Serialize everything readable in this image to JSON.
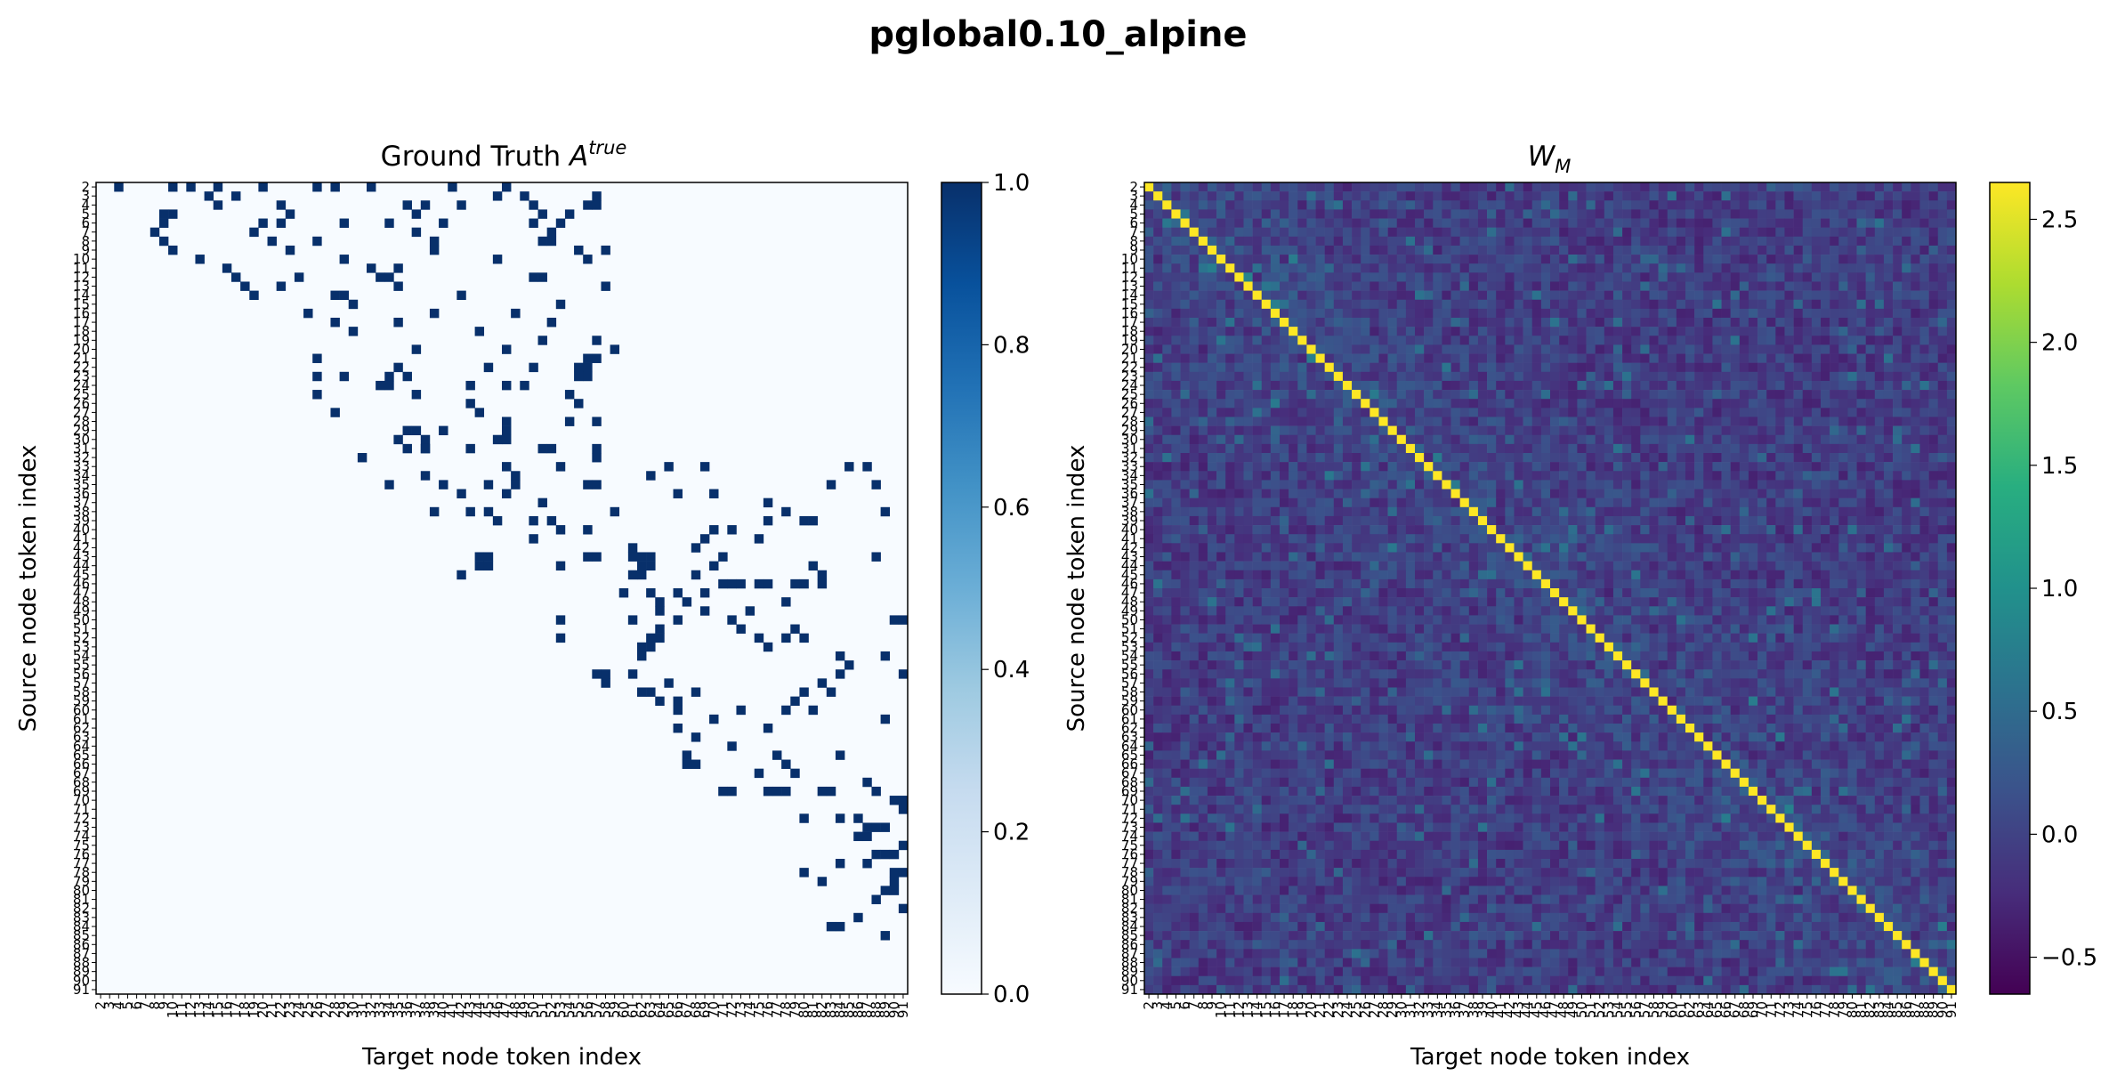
{
  "figure": {
    "suptitle": "pglobal0.10_alpine"
  },
  "chart_data": [
    {
      "type": "heatmap",
      "title": "Ground Truth A^true",
      "title_main": "Ground Truth ",
      "title_sym": "A",
      "title_sup": "true",
      "xlabel": "Target node token index",
      "ylabel": "Source node token index",
      "index_range": [
        2,
        91
      ],
      "tick_step": 1,
      "value_range": [
        0.0,
        1.0
      ],
      "colormap": "Blues",
      "colorbar_ticks": [
        "0.0",
        "0.2",
        "0.4",
        "0.6",
        "0.8",
        "1.0"
      ],
      "colorbar_values": [
        0.0,
        0.2,
        0.4,
        0.6,
        0.8,
        1.0
      ],
      "ones": [
        [
          2,
          4
        ],
        [
          2,
          10
        ],
        [
          2,
          12
        ],
        [
          2,
          15
        ],
        [
          2,
          20
        ],
        [
          2,
          26
        ],
        [
          2,
          28
        ],
        [
          2,
          32
        ],
        [
          2,
          41
        ],
        [
          2,
          47
        ],
        [
          3,
          14
        ],
        [
          3,
          17
        ],
        [
          3,
          46
        ],
        [
          3,
          49
        ],
        [
          3,
          57
        ],
        [
          4,
          15
        ],
        [
          4,
          22
        ],
        [
          4,
          36
        ],
        [
          4,
          38
        ],
        [
          4,
          42
        ],
        [
          4,
          50
        ],
        [
          4,
          56
        ],
        [
          4,
          57
        ],
        [
          5,
          9
        ],
        [
          5,
          10
        ],
        [
          5,
          23
        ],
        [
          5,
          37
        ],
        [
          5,
          51
        ],
        [
          5,
          54
        ],
        [
          6,
          9
        ],
        [
          6,
          20
        ],
        [
          6,
          22
        ],
        [
          6,
          29
        ],
        [
          6,
          34
        ],
        [
          6,
          40
        ],
        [
          6,
          50
        ],
        [
          6,
          53
        ],
        [
          7,
          8
        ],
        [
          7,
          19
        ],
        [
          7,
          37
        ],
        [
          7,
          52
        ],
        [
          8,
          9
        ],
        [
          8,
          21
        ],
        [
          8,
          26
        ],
        [
          8,
          39
        ],
        [
          8,
          51
        ],
        [
          8,
          52
        ],
        [
          9,
          10
        ],
        [
          9,
          23
        ],
        [
          9,
          39
        ],
        [
          9,
          55
        ],
        [
          9,
          58
        ],
        [
          10,
          13
        ],
        [
          10,
          29
        ],
        [
          10,
          46
        ],
        [
          10,
          56
        ],
        [
          11,
          16
        ],
        [
          11,
          32
        ],
        [
          11,
          35
        ],
        [
          12,
          17
        ],
        [
          12,
          24
        ],
        [
          12,
          33
        ],
        [
          12,
          34
        ],
        [
          12,
          50
        ],
        [
          12,
          51
        ],
        [
          13,
          18
        ],
        [
          13,
          22
        ],
        [
          13,
          35
        ],
        [
          13,
          58
        ],
        [
          14,
          19
        ],
        [
          14,
          28
        ],
        [
          14,
          29
        ],
        [
          14,
          42
        ],
        [
          15,
          30
        ],
        [
          15,
          53
        ],
        [
          16,
          25
        ],
        [
          16,
          39
        ],
        [
          16,
          48
        ],
        [
          17,
          28
        ],
        [
          17,
          35
        ],
        [
          17,
          52
        ],
        [
          18,
          30
        ],
        [
          18,
          44
        ],
        [
          19,
          51
        ],
        [
          19,
          57
        ],
        [
          20,
          37
        ],
        [
          20,
          47
        ],
        [
          20,
          59
        ],
        [
          21,
          26
        ],
        [
          21,
          56
        ],
        [
          21,
          57
        ],
        [
          22,
          35
        ],
        [
          22,
          45
        ],
        [
          22,
          50
        ],
        [
          22,
          55
        ],
        [
          22,
          56
        ],
        [
          23,
          26
        ],
        [
          23,
          29
        ],
        [
          23,
          34
        ],
        [
          23,
          36
        ],
        [
          23,
          55
        ],
        [
          23,
          56
        ],
        [
          24,
          33
        ],
        [
          24,
          34
        ],
        [
          24,
          43
        ],
        [
          24,
          47
        ],
        [
          24,
          49
        ],
        [
          25,
          26
        ],
        [
          25,
          37
        ],
        [
          25,
          54
        ],
        [
          26,
          43
        ],
        [
          26,
          55
        ],
        [
          27,
          28
        ],
        [
          27,
          44
        ],
        [
          28,
          47
        ],
        [
          28,
          54
        ],
        [
          28,
          57
        ],
        [
          29,
          36
        ],
        [
          29,
          37
        ],
        [
          29,
          40
        ],
        [
          29,
          47
        ],
        [
          30,
          35
        ],
        [
          30,
          38
        ],
        [
          30,
          46
        ],
        [
          30,
          47
        ],
        [
          31,
          36
        ],
        [
          31,
          38
        ],
        [
          31,
          38
        ],
        [
          31,
          43
        ],
        [
          31,
          51
        ],
        [
          31,
          52
        ],
        [
          31,
          57
        ],
        [
          32,
          31
        ],
        [
          32,
          57
        ],
        [
          33,
          47
        ],
        [
          33,
          53
        ],
        [
          33,
          65
        ],
        [
          33,
          69
        ],
        [
          33,
          85
        ],
        [
          33,
          87
        ],
        [
          34,
          38
        ],
        [
          34,
          48
        ],
        [
          34,
          63
        ],
        [
          35,
          34
        ],
        [
          35,
          40
        ],
        [
          35,
          45
        ],
        [
          35,
          48
        ],
        [
          35,
          56
        ],
        [
          35,
          57
        ],
        [
          35,
          83
        ],
        [
          35,
          88
        ],
        [
          36,
          42
        ],
        [
          36,
          47
        ],
        [
          36,
          66
        ],
        [
          36,
          70
        ],
        [
          37,
          51
        ],
        [
          37,
          76
        ],
        [
          38,
          39
        ],
        [
          38,
          43
        ],
        [
          38,
          45
        ],
        [
          38,
          59
        ],
        [
          38,
          78
        ],
        [
          38,
          89
        ],
        [
          39,
          46
        ],
        [
          39,
          50
        ],
        [
          39,
          52
        ],
        [
          39,
          76
        ],
        [
          39,
          80
        ],
        [
          39,
          81
        ],
        [
          40,
          53
        ],
        [
          40,
          56
        ],
        [
          40,
          70
        ],
        [
          40,
          72
        ],
        [
          41,
          50
        ],
        [
          41,
          69
        ],
        [
          41,
          75
        ],
        [
          42,
          61
        ],
        [
          42,
          68
        ],
        [
          43,
          44
        ],
        [
          43,
          45
        ],
        [
          43,
          56
        ],
        [
          43,
          57
        ],
        [
          43,
          61
        ],
        [
          43,
          62
        ],
        [
          43,
          63
        ],
        [
          43,
          71
        ],
        [
          43,
          88
        ],
        [
          44,
          44
        ],
        [
          44,
          45
        ],
        [
          44,
          53
        ],
        [
          44,
          62
        ],
        [
          44,
          63
        ],
        [
          44,
          70
        ],
        [
          44,
          81
        ],
        [
          45,
          42
        ],
        [
          45,
          61
        ],
        [
          45,
          62
        ],
        [
          45,
          68
        ],
        [
          45,
          82
        ],
        [
          46,
          71
        ],
        [
          46,
          72
        ],
        [
          46,
          73
        ],
        [
          46,
          75
        ],
        [
          46,
          76
        ],
        [
          46,
          79
        ],
        [
          46,
          80
        ],
        [
          46,
          82
        ],
        [
          47,
          60
        ],
        [
          47,
          63
        ],
        [
          47,
          66
        ],
        [
          47,
          69
        ],
        [
          48,
          64
        ],
        [
          48,
          67
        ],
        [
          48,
          78
        ],
        [
          49,
          64
        ],
        [
          49,
          69
        ],
        [
          49,
          74
        ],
        [
          50,
          53
        ],
        [
          50,
          61
        ],
        [
          50,
          66
        ],
        [
          50,
          72
        ],
        [
          50,
          90
        ],
        [
          50,
          91
        ],
        [
          51,
          64
        ],
        [
          51,
          73
        ],
        [
          51,
          79
        ],
        [
          52,
          53
        ],
        [
          52,
          63
        ],
        [
          52,
          64
        ],
        [
          52,
          75
        ],
        [
          52,
          78
        ],
        [
          52,
          80
        ],
        [
          53,
          62
        ],
        [
          53,
          63
        ],
        [
          53,
          76
        ],
        [
          54,
          62
        ],
        [
          54,
          84
        ],
        [
          54,
          89
        ],
        [
          55,
          85
        ],
        [
          56,
          57
        ],
        [
          56,
          58
        ],
        [
          56,
          61
        ],
        [
          56,
          84
        ],
        [
          56,
          91
        ],
        [
          57,
          58
        ],
        [
          57,
          65
        ],
        [
          57,
          82
        ],
        [
          58,
          62
        ],
        [
          58,
          63
        ],
        [
          58,
          68
        ],
        [
          58,
          80
        ],
        [
          58,
          83
        ],
        [
          59,
          64
        ],
        [
          59,
          66
        ],
        [
          59,
          79
        ],
        [
          60,
          66
        ],
        [
          60,
          73
        ],
        [
          60,
          78
        ],
        [
          60,
          81
        ],
        [
          61,
          70
        ],
        [
          61,
          89
        ],
        [
          62,
          66
        ],
        [
          62,
          76
        ],
        [
          63,
          68
        ],
        [
          64,
          72
        ],
        [
          65,
          67
        ],
        [
          65,
          77
        ],
        [
          65,
          84
        ],
        [
          66,
          67
        ],
        [
          66,
          68
        ],
        [
          66,
          78
        ],
        [
          67,
          75
        ],
        [
          67,
          79
        ],
        [
          68,
          87
        ],
        [
          69,
          71
        ],
        [
          69,
          72
        ],
        [
          69,
          76
        ],
        [
          69,
          77
        ],
        [
          69,
          78
        ],
        [
          69,
          82
        ],
        [
          69,
          83
        ],
        [
          69,
          88
        ],
        [
          70,
          90
        ],
        [
          70,
          91
        ],
        [
          71,
          91
        ],
        [
          72,
          80
        ],
        [
          72,
          84
        ],
        [
          72,
          86
        ],
        [
          73,
          87
        ],
        [
          73,
          88
        ],
        [
          73,
          89
        ],
        [
          74,
          86
        ],
        [
          74,
          87
        ],
        [
          75,
          91
        ],
        [
          76,
          88
        ],
        [
          76,
          89
        ],
        [
          76,
          90
        ],
        [
          77,
          84
        ],
        [
          77,
          87
        ],
        [
          78,
          80
        ],
        [
          78,
          90
        ],
        [
          78,
          91
        ],
        [
          79,
          82
        ],
        [
          79,
          90
        ],
        [
          80,
          89
        ],
        [
          80,
          90
        ],
        [
          81,
          88
        ],
        [
          82,
          91
        ],
        [
          83,
          86
        ],
        [
          84,
          83
        ],
        [
          84,
          84
        ],
        [
          85,
          89
        ]
      ]
    },
    {
      "type": "heatmap",
      "title": "W_M",
      "title_sym": "W",
      "title_sub": "M",
      "xlabel": "Target node token index",
      "ylabel": "Source node token index",
      "index_range": [
        2,
        91
      ],
      "tick_step": 1,
      "value_range": [
        -0.65,
        2.65
      ],
      "diagonal_value": 2.65,
      "colormap": "viridis",
      "colorbar_ticks": [
        "−0.5",
        "0.0",
        "0.5",
        "1.0",
        "1.5",
        "2.0",
        "2.5"
      ],
      "colorbar_values": [
        -0.5,
        0.0,
        0.5,
        1.0,
        1.5,
        2.0,
        2.5
      ]
    }
  ]
}
